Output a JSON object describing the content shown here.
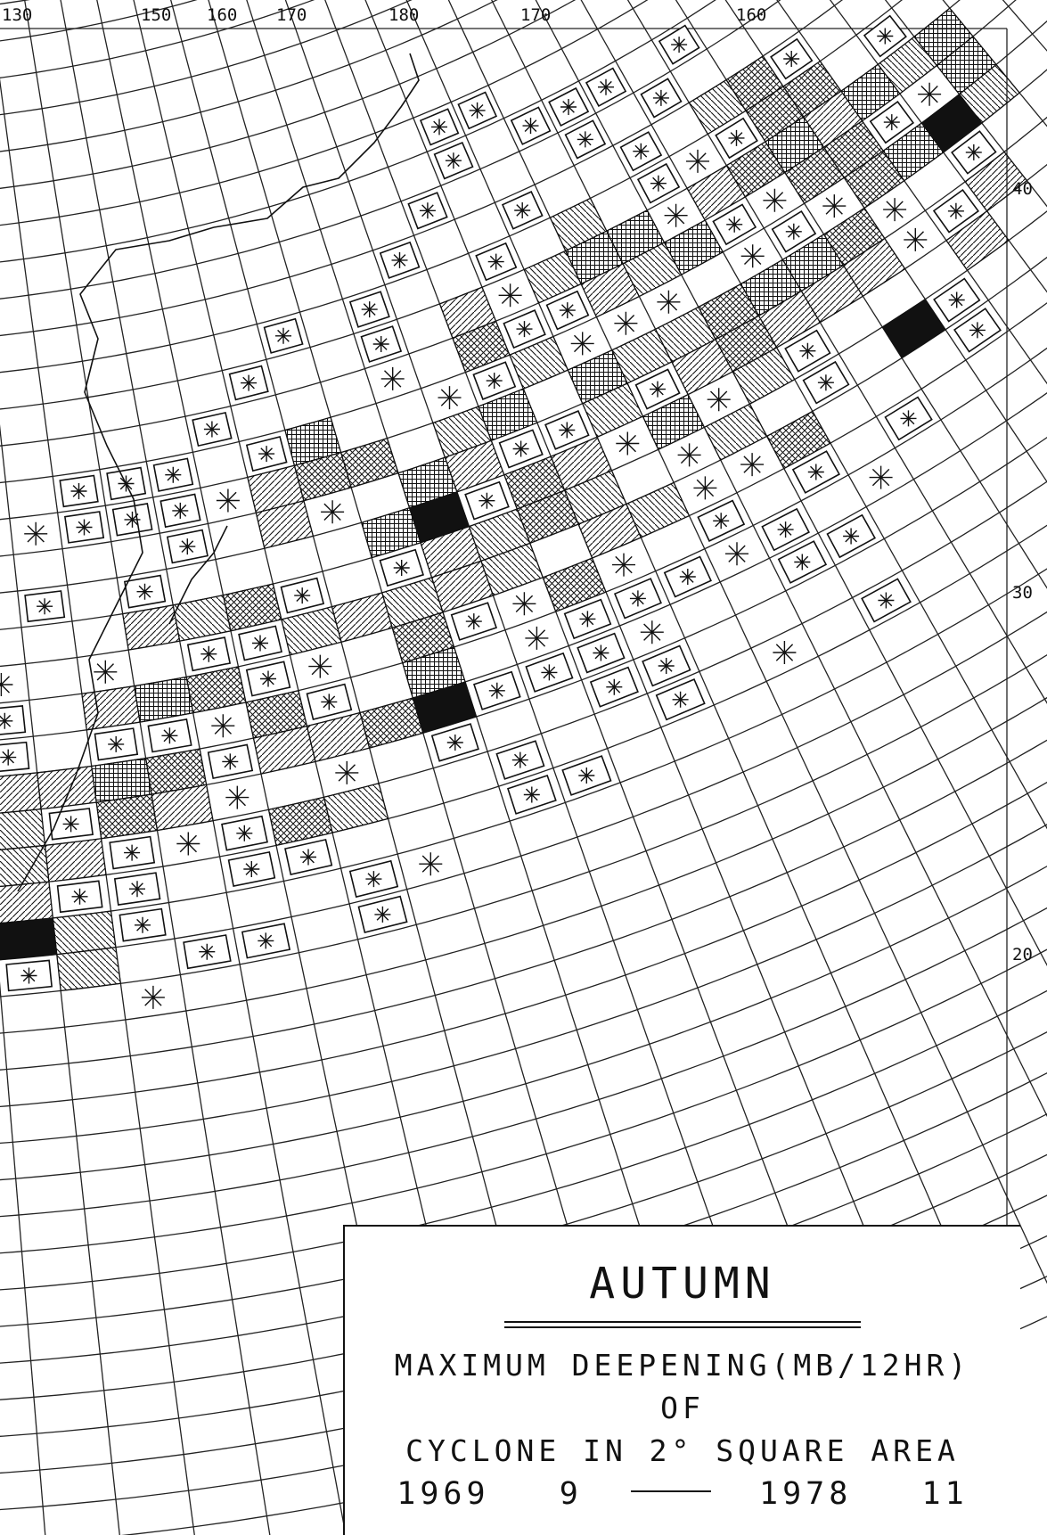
{
  "map": {
    "top_longitude_labels": [
      "130",
      "150",
      "160",
      "170",
      "180",
      "170",
      "160"
    ],
    "right_latitude_labels": [
      "40",
      "30",
      "20"
    ]
  },
  "legend": {
    "season": "AUTUMN",
    "title_line1": "MAXIMUM DEEPENING(MB/12HR)",
    "title_line2": "OF",
    "title_line3": "CYCLONE IN 2° SQUARE AREA",
    "period_start_year": "1969",
    "period_start_month": "9",
    "period_end_year": "1978",
    "period_end_month": "11"
  }
}
